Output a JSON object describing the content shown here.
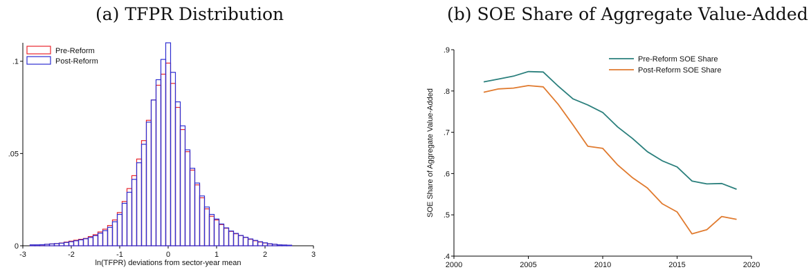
{
  "chart_data": [
    {
      "panel": "a",
      "type": "bar",
      "title": "(a) TFPR Distribution",
      "xlabel": "ln(TFPR) deviations from sector-year mean",
      "ylabel": "",
      "xlim": [
        -3,
        3
      ],
      "ylim": [
        0,
        0.11
      ],
      "xticks": [
        -3,
        -2,
        -1,
        0,
        1,
        2,
        3
      ],
      "xtick_labels": [
        "-3",
        "-2",
        "-1",
        "0",
        "1",
        "2",
        "3"
      ],
      "yticks": [
        0,
        0.05,
        0.1
      ],
      "ytick_labels": [
        "0",
        ".05",
        ".1"
      ],
      "legend_position": "top-left",
      "bin_width": 0.1,
      "bin_centers": [
        -2.8,
        -2.7,
        -2.6,
        -2.5,
        -2.4,
        -2.3,
        -2.2,
        -2.1,
        -2.0,
        -1.9,
        -1.8,
        -1.7,
        -1.6,
        -1.5,
        -1.4,
        -1.3,
        -1.2,
        -1.1,
        -1.0,
        -0.9,
        -0.8,
        -0.7,
        -0.6,
        -0.5,
        -0.4,
        -0.3,
        -0.2,
        -0.1,
        0.0,
        0.1,
        0.2,
        0.3,
        0.4,
        0.5,
        0.6,
        0.7,
        0.8,
        0.9,
        1.0,
        1.1,
        1.2,
        1.3,
        1.4,
        1.5,
        1.6,
        1.7,
        1.8,
        1.9,
        2.0,
        2.1,
        2.2,
        2.3,
        2.4,
        2.5
      ],
      "series": [
        {
          "name": "Pre-Reform",
          "color": "#e8242c",
          "values": [
            0.0005,
            0.0005,
            0.0005,
            0.0008,
            0.001,
            0.0012,
            0.0015,
            0.002,
            0.0025,
            0.003,
            0.0035,
            0.004,
            0.005,
            0.006,
            0.0075,
            0.009,
            0.011,
            0.014,
            0.018,
            0.024,
            0.031,
            0.038,
            0.047,
            0.057,
            0.068,
            0.079,
            0.087,
            0.093,
            0.099,
            0.088,
            0.075,
            0.063,
            0.051,
            0.041,
            0.033,
            0.026,
            0.02,
            0.016,
            0.014,
            0.0115,
            0.0095,
            0.0078,
            0.0065,
            0.0055,
            0.0045,
            0.0035,
            0.0027,
            0.002,
            0.0015,
            0.001,
            0.0008,
            0.0005,
            0.0004,
            0.0003
          ]
        },
        {
          "name": "Post-Reform",
          "color": "#2d2dd0",
          "values": [
            0.0005,
            0.0005,
            0.0006,
            0.0008,
            0.001,
            0.0012,
            0.0014,
            0.0018,
            0.0022,
            0.0027,
            0.0032,
            0.0038,
            0.0045,
            0.0055,
            0.0068,
            0.0082,
            0.01,
            0.013,
            0.017,
            0.023,
            0.029,
            0.036,
            0.045,
            0.055,
            0.067,
            0.079,
            0.09,
            0.101,
            0.11,
            0.094,
            0.078,
            0.065,
            0.052,
            0.042,
            0.034,
            0.027,
            0.021,
            0.017,
            0.0145,
            0.0118,
            0.0097,
            0.008,
            0.0067,
            0.0056,
            0.0046,
            0.0037,
            0.0029,
            0.0022,
            0.0016,
            0.0011,
            0.0008,
            0.0005,
            0.0004,
            0.0003
          ]
        }
      ]
    },
    {
      "panel": "b",
      "type": "line",
      "title": "(b) SOE Share of Aggregate Value-Added",
      "xlabel": "",
      "ylabel": "SOE Share of Aggregate Value-Added",
      "xlim": [
        2000,
        2020
      ],
      "ylim": [
        0.4,
        0.9
      ],
      "xticks": [
        2000,
        2005,
        2010,
        2015,
        2020
      ],
      "xtick_labels": [
        "2000",
        "2005",
        "2010",
        "2015",
        "2020"
      ],
      "yticks": [
        0.4,
        0.5,
        0.6,
        0.7,
        0.8,
        0.9
      ],
      "ytick_labels": [
        ".4",
        ".5",
        ".6",
        ".7",
        ".8",
        ".9"
      ],
      "legend_position": "top-right",
      "x": [
        2002,
        2003,
        2004,
        2005,
        2006,
        2007,
        2008,
        2009,
        2010,
        2011,
        2012,
        2013,
        2014,
        2015,
        2016,
        2017,
        2018,
        2019
      ],
      "series": [
        {
          "name": "Pre-Reform SOE Share",
          "color": "#2a7f7c",
          "values": [
            0.822,
            0.829,
            0.836,
            0.847,
            0.846,
            0.812,
            0.781,
            0.766,
            0.748,
            0.713,
            0.685,
            0.653,
            0.631,
            0.616,
            0.582,
            0.575,
            0.576,
            0.562
          ]
        },
        {
          "name": "Post-Reform SOE Share",
          "color": "#e07a2e",
          "values": [
            0.797,
            0.805,
            0.807,
            0.813,
            0.81,
            0.768,
            0.718,
            0.666,
            0.661,
            0.621,
            0.59,
            0.565,
            0.527,
            0.507,
            0.454,
            0.464,
            0.496,
            0.489
          ]
        }
      ]
    }
  ]
}
